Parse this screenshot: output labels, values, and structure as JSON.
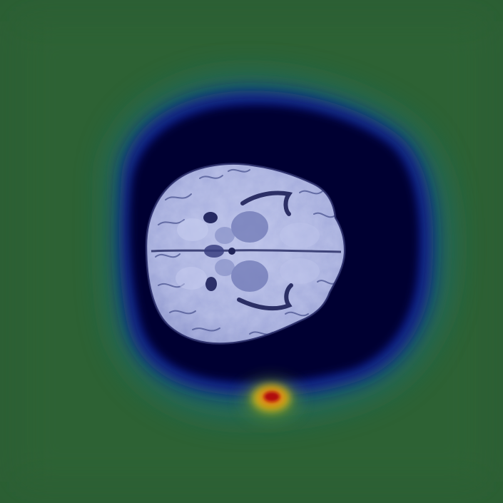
{
  "image": {
    "kind": "axial brain MRI slice with attention heatmap overlay",
    "colors": {
      "background_green": "#2c5f34",
      "halo_teal": "#1f6a6a",
      "mid_blue": "#0c1a8a",
      "deep_navy": "#030230",
      "brain_tissue": "#a9b2e0",
      "brain_highlight": "#c5cbef",
      "brain_shadow": "#5f69a8",
      "hotspot_red": "#b0100a",
      "hotspot_orange": "#e0700a",
      "hotspot_yellow": "#d9c21a"
    }
  }
}
